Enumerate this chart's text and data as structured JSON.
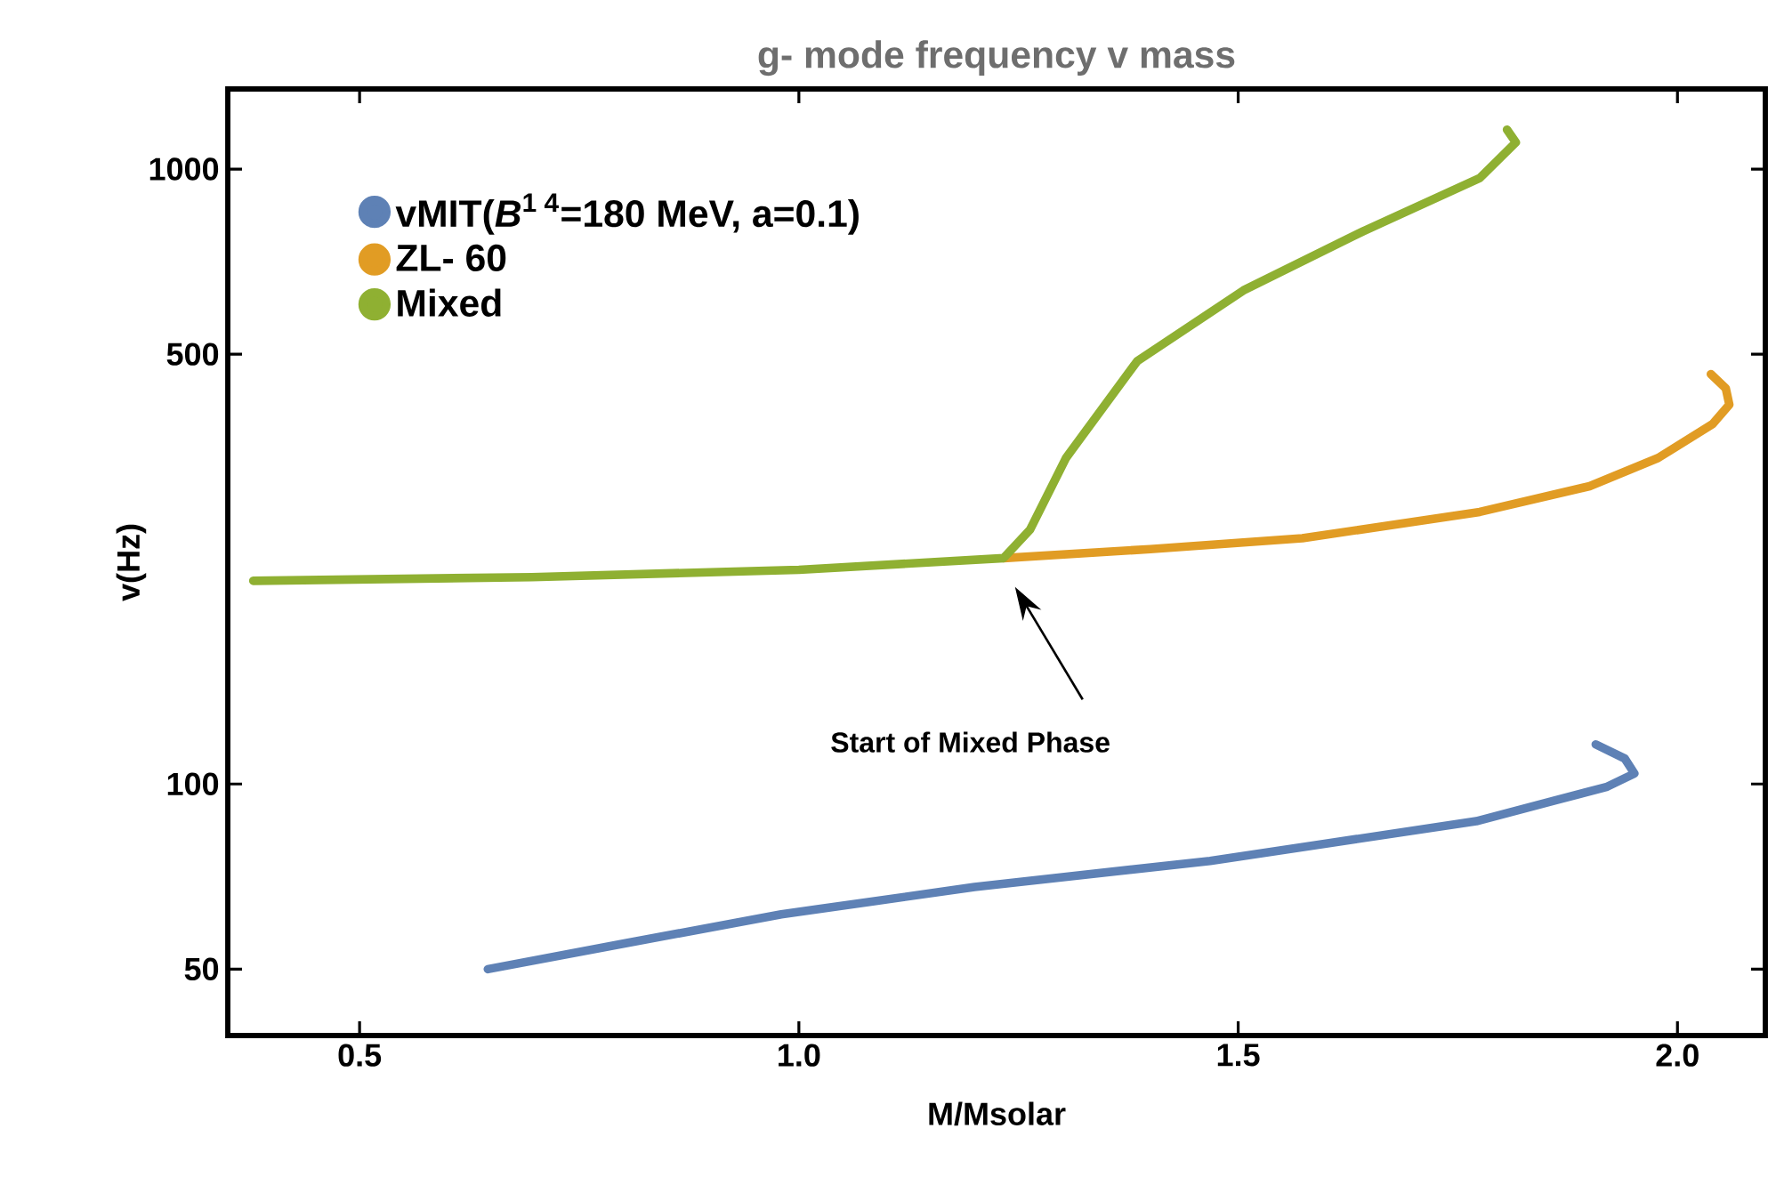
{
  "chart_data": {
    "type": "line",
    "title": "g- mode frequency v mass",
    "xlabel": "M/Msolar",
    "ylabel": "v(Hz)",
    "log": "y",
    "legend": "top left",
    "xlim": [
      0.35,
      2.1
    ],
    "xticks": [
      0.5,
      {
        "value": 1,
        "label": "1.0"
      },
      1.5,
      {
        "value": 2,
        "label": "2.0"
      }
    ],
    "ylim": [
      39,
      1350
    ],
    "yticks": [
      50,
      100,
      500,
      1000
    ],
    "annotations": [
      "Start of Mixed Phase"
    ],
    "series": [
      {
        "name": "vMIT(*B*$^{1  4}$=180 MeV, a=0.1)",
        "color": "#5e81b5",
        "x": [
          0.646,
          0.8,
          0.98,
          1.2,
          1.468,
          1.6,
          1.771,
          1.86,
          1.92,
          1.951,
          1.94,
          1.907
        ],
        "values": [
          50,
          55,
          61.4,
          68,
          75,
          80,
          87,
          94,
          99,
          104,
          110,
          116
        ]
      },
      {
        "name": "ZL- 60",
        "color": "#e19c24",
        "x": [
          1.233,
          1.4,
          1.573,
          1.775,
          1.9,
          1.978,
          2.04,
          2.059,
          2.055,
          2.038
        ],
        "values": [
          233,
          241,
          251,
          277,
          305,
          339,
          385,
          414,
          440,
          464
        ]
      },
      {
        "name": "Mixed",
        "color": "#8fb032",
        "x": [
          0.379,
          0.696,
          1.0,
          1.233,
          1.263,
          1.304,
          1.385,
          1.506,
          1.642,
          1.775,
          1.816,
          1.806
        ],
        "values": [
          214,
          217,
          223,
          233,
          259,
          339,
          487,
          635,
          792,
          967,
          1105,
          1159
        ]
      }
    ]
  }
}
